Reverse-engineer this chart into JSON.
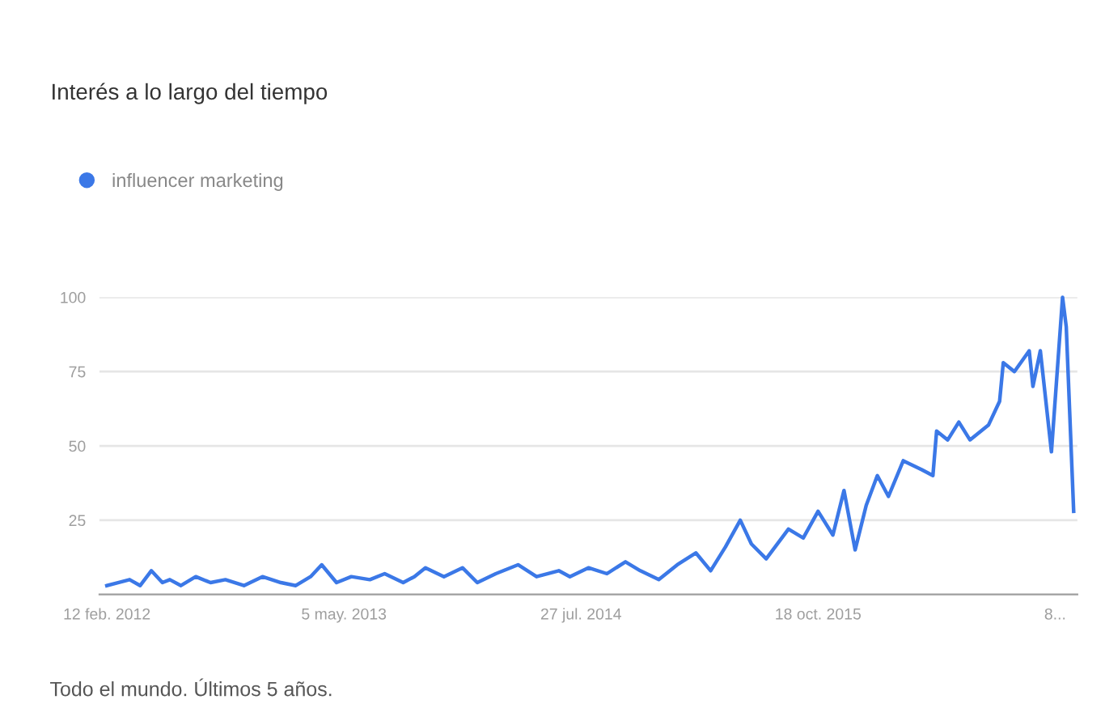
{
  "chart_data": {
    "type": "line",
    "title": "Interés a lo largo del tiempo",
    "annotations": [
      "Todo el mundo. Últimos 5 años."
    ],
    "series": [
      {
        "name": "influencer marketing",
        "color": "#3b78e7",
        "x": [
          "2012-02-12",
          "2012-03-04",
          "2012-03-26",
          "2012-04-15",
          "2012-05-06",
          "2012-05-27",
          "2012-06-10",
          "2012-07-01",
          "2012-07-29",
          "2012-08-26",
          "2012-09-23",
          "2012-10-28",
          "2012-12-02",
          "2013-01-06",
          "2013-02-03",
          "2013-03-03",
          "2013-03-24",
          "2013-04-21",
          "2013-05-19",
          "2013-06-23",
          "2013-07-21",
          "2013-08-25",
          "2013-09-15",
          "2013-10-06",
          "2013-11-10",
          "2013-12-15",
          "2014-01-12",
          "2014-02-16",
          "2014-03-30",
          "2014-05-04",
          "2014-06-15",
          "2014-07-06",
          "2014-08-10",
          "2014-09-14",
          "2014-10-19",
          "2014-11-16",
          "2014-12-21",
          "2015-01-25",
          "2015-03-01",
          "2015-03-29",
          "2015-04-26",
          "2015-05-24",
          "2015-06-14",
          "2015-07-12",
          "2015-08-23",
          "2015-09-20",
          "2015-10-18",
          "2015-11-15",
          "2015-12-06",
          "2015-12-27",
          "2016-01-17",
          "2016-02-07",
          "2016-02-28",
          "2016-03-27",
          "2016-05-01",
          "2016-05-22",
          "2016-05-29",
          "2016-06-19",
          "2016-07-10",
          "2016-07-31",
          "2016-09-04",
          "2016-09-25",
          "2016-10-02",
          "2016-10-23",
          "2016-11-20",
          "2016-11-27",
          "2016-12-11",
          "2017-01-01",
          "2017-01-22",
          "2017-01-29",
          "2017-02-12"
        ],
        "values": [
          3,
          4,
          5,
          3,
          8,
          4,
          5,
          3,
          6,
          4,
          5,
          3,
          6,
          4,
          3,
          6,
          10,
          4,
          6,
          5,
          7,
          4,
          6,
          9,
          6,
          9,
          4,
          7,
          10,
          6,
          8,
          6,
          9,
          7,
          11,
          8,
          5,
          10,
          14,
          8,
          16,
          25,
          17,
          12,
          22,
          19,
          28,
          20,
          35,
          15,
          30,
          40,
          33,
          45,
          42,
          40,
          55,
          52,
          58,
          52,
          57,
          65,
          78,
          75,
          82,
          70,
          82,
          48,
          100,
          90,
          28
        ]
      }
    ],
    "xlim": [
      "2012-01-29",
      "2017-02-19"
    ],
    "xticks": [
      {
        "value": "2012-02-12",
        "label": "12 feb. 2012"
      },
      {
        "value": "2013-05-05",
        "label": "5 may. 2013"
      },
      {
        "value": "2014-07-27",
        "label": "27 jul. 2014"
      },
      {
        "value": "2015-10-18",
        "label": "18 oct. 2015"
      },
      {
        "value": "2017-01-08",
        "label": "8..."
      }
    ],
    "ylim": [
      0,
      100
    ],
    "yticks": [
      25,
      50,
      75,
      100
    ],
    "grid": "y",
    "legend": "top left",
    "marker": "none",
    "line_style": "solid"
  }
}
